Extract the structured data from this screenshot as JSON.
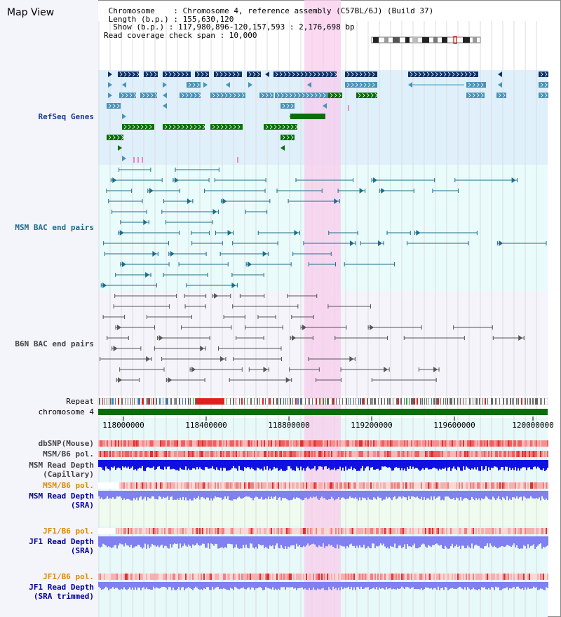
{
  "header": {
    "title": "Map View",
    "lines": [
      " Chromosome    : Chromosome 4, reference assembly (C57BL/6J) (Build 37)",
      " Length (b.p.) : 155,630,120",
      "  Show (b.p.) : 117,980,896-120,157,593 : 2,176,698 bp",
      "Read coverage check span : 10,000"
    ]
  },
  "tracks": {
    "refseq": "RefSeq Genes",
    "msm_bac": "MSM BAC end pairs",
    "b6n_bac": "B6N BAC end pairs",
    "repeat": "Repeat",
    "chromosome": "chromosome 4",
    "dbsnp": "dbSNP(Mouse)",
    "msm_b6_pol_1": "MSM/B6 pol.",
    "msm_read_depth_cap": "MSM Read Depth\n(Capillary)",
    "msm_b6_pol_2": "MSM/B6 pol.",
    "msm_read_depth_sra": "MSM Read Depth\n(SRA)",
    "jf1_b6_pol_1": "JF1/B6 pol.",
    "jf1_read_depth_sra": "JF1 Read Depth\n(SRA)",
    "jf1_b6_pol_2": "JF1/B6 pol.",
    "jf1_read_depth_trim": "JF1 Read Depth\n(SRA trimmed)"
  },
  "axis_ticks": [
    "118000000",
    "118400000",
    "118800000",
    "119200000",
    "119600000",
    "120000000"
  ],
  "colors": {
    "refseq_bg": "#dff0fb",
    "msm_bg": "#e9fbfb",
    "b6n_bg": "#f4f4fa",
    "highlight": "#f8ccec",
    "chromosome_bar": "#0a6e0a",
    "gene_dark": "#0d3366",
    "gene_mid": "#4b93b8",
    "gene_green": "#0a6e0a",
    "msm_line": "#1a6e8a",
    "b6n_line": "#555555",
    "depth_blue": "#1010e0",
    "depth_light": "#8080f0",
    "label_blue": "#000099",
    "label_orange": "#e08a00",
    "refseq_label": "#1a3a99",
    "msm_label": "#1a6e8a",
    "b6n_label": "#444444"
  }
}
